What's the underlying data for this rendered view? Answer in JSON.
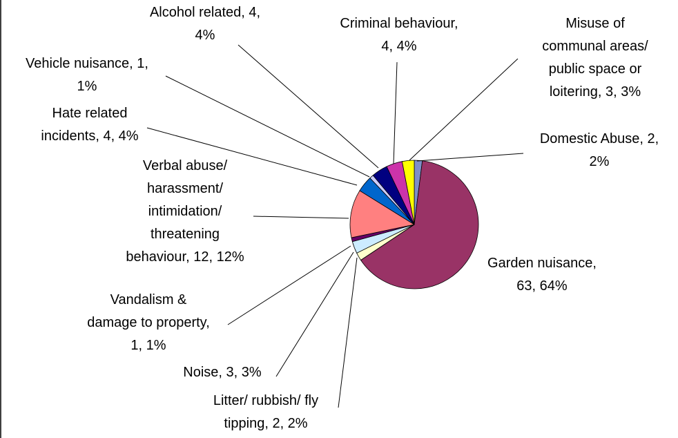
{
  "chart_data": {
    "type": "pie",
    "categories": [
      "Domestic Abuse, 2, 2%",
      "Garden nuisance, 63, 64%",
      "Litter/ rubbish/ fly tipping, 2, 2%",
      "Noise, 3, 3%",
      "Vandalism & damage to property, 1, 1%",
      "Verbal abuse/ harassment/ intimidation/ threatening behaviour, 12, 12%",
      "Hate related incidents, 4, 4%",
      "Vehicle nuisance, 1, 1%",
      "Alcohol related, 4, 4%",
      "Criminal behaviour, 4, 4%",
      "Misuse of communal areas/ public space or loitering, 3, 3%"
    ],
    "values": [
      2,
      63,
      2,
      3,
      1,
      12,
      4,
      1,
      4,
      4,
      3
    ],
    "colors": [
      "#7f8fc8",
      "#993366",
      "#ffffcc",
      "#ccecff",
      "#660066",
      "#ff8080",
      "#0066cc",
      "#ccccff",
      "#000080",
      "#cc33aa",
      "#ffff00"
    ]
  }
}
